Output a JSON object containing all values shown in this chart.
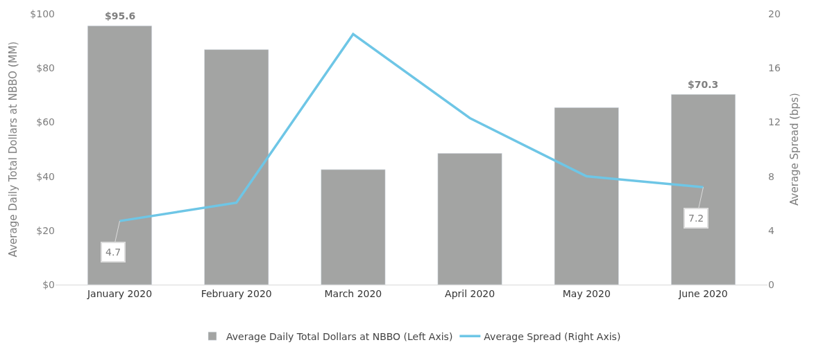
{
  "chart_data": {
    "type": "bar",
    "categories": [
      "January 2020",
      "February 2020",
      "March 2020",
      "April 2020",
      "May 2020",
      "June 2020"
    ],
    "series": [
      {
        "name": "Average Daily Total Dollars at NBBO (Left Axis)",
        "color": "#a3a4a3",
        "values": [
          95.6,
          86.8,
          42.5,
          48.5,
          65.4,
          70.3
        ],
        "value_labels": [
          "$95.6",
          null,
          null,
          null,
          null,
          "$70.3"
        ]
      },
      {
        "name": "Average Spread (Right Axis)",
        "type": "line",
        "axis": "y2",
        "color": "#6ec6e6",
        "values": [
          4.7,
          6.05,
          18.5,
          12.3,
          8.0,
          7.2
        ],
        "value_labels": [
          "4.7",
          null,
          null,
          null,
          null,
          "7.2"
        ]
      }
    ],
    "ylabel": "Average Daily Total Dollars at NBBO (MM)",
    "y2label": "Average Spread (bps)",
    "ylim": [
      0,
      100
    ],
    "yticks": [
      {
        "value": 0,
        "label": "$0"
      },
      {
        "value": 20,
        "label": "$20"
      },
      {
        "value": 40,
        "label": "$40"
      },
      {
        "value": 60,
        "label": "$60"
      },
      {
        "value": 80,
        "label": "$80"
      },
      {
        "value": 100,
        "label": "$100"
      }
    ],
    "y2lim": [
      0,
      20
    ],
    "y2ticks": [
      0,
      4,
      8,
      12,
      16,
      20
    ],
    "grid": false,
    "legend": "bottom",
    "marker": "none",
    "line_style": "solid"
  }
}
